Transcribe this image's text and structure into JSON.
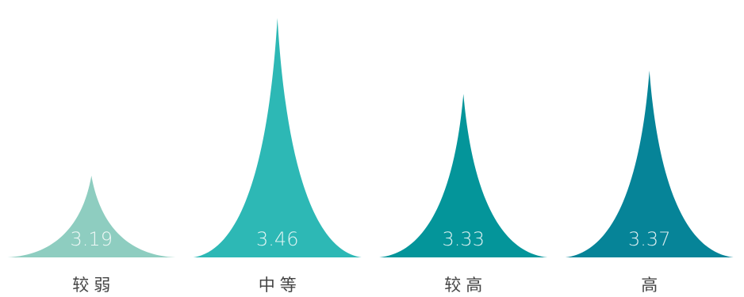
{
  "chart_data": {
    "type": "bar",
    "categories": [
      "较弱",
      "中等",
      "较高",
      "高"
    ],
    "values": [
      3.19,
      3.46,
      3.33,
      3.37
    ],
    "value_labels": [
      "3.19",
      "3.46",
      "3.33",
      "3.37"
    ],
    "title": "",
    "xlabel": "",
    "ylabel": "",
    "ylim": [
      3.05,
      3.48
    ],
    "grid": false,
    "legend": "none",
    "colors": [
      "#8ecdc0",
      "#2db8b5",
      "#04959a",
      "#068498"
    ]
  }
}
